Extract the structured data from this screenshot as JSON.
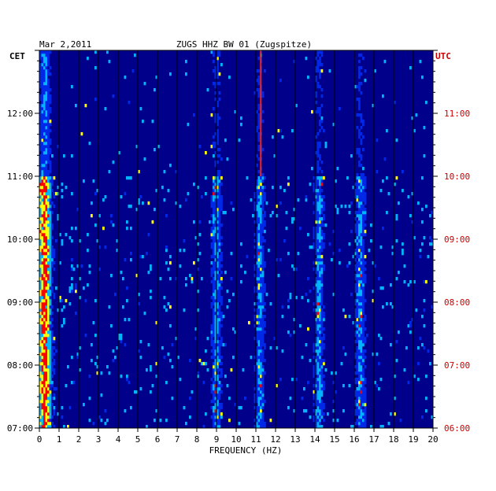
{
  "header": {
    "date": "Mar 2,2011",
    "station": "ZUGS HHZ BW 01 (Zugspitze)"
  },
  "colors": {
    "background": "#00008b",
    "text": "#000000",
    "utc_text": "#cc0000",
    "gridline": "#000000"
  },
  "chart_data": {
    "type": "heatmap",
    "title": "ZUGS HHZ BW 01 (Zugspitze)",
    "date": "Mar 2,2011",
    "xlabel": "FREQUENCY (HZ)",
    "xlim": [
      0,
      20
    ],
    "x_ticks": [
      "0",
      "1",
      "2",
      "3",
      "4",
      "5",
      "6",
      "7",
      "8",
      "9",
      "10",
      "11",
      "12",
      "13",
      "14",
      "15",
      "16",
      "17",
      "18",
      "19",
      "20"
    ],
    "left_axis": {
      "label": "CET",
      "ticks": [
        "12:00",
        "11:00",
        "10:00",
        "09:00",
        "08:00",
        "07:00"
      ],
      "tick_hours_cet": [
        12,
        11,
        10,
        9,
        8,
        7
      ]
    },
    "right_axis": {
      "label": "UTC",
      "ticks": [
        "11:00",
        "10:00",
        "09:00",
        "08:00",
        "07:00",
        "06:00"
      ],
      "tick_hours_utc": [
        11,
        10,
        9,
        8,
        7,
        6
      ]
    },
    "time_range_cet": [
      "07:00",
      "13:00"
    ],
    "strong_bands_hz": [
      0.3,
      9.0,
      11.2,
      14.2,
      16.3
    ],
    "narrow_line_hz": 11.25,
    "narrow_line_time_cet": [
      "11:00",
      "13:00"
    ],
    "colormap": [
      "#00008b",
      "#0028e6",
      "#00b4ff",
      "#ffff00",
      "#ff0000"
    ]
  }
}
